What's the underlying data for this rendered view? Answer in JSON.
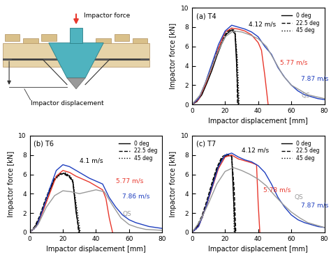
{
  "diagram": {
    "impactor_force_label": "Impactor force",
    "impactor_displacement_label": "Impactor displacement"
  },
  "chart_data": [
    {
      "type": "line",
      "title": "(a) T4",
      "xlabel": "Impactor displacement [mm]",
      "ylabel": "Impactor force [kN]",
      "xlim": [
        0,
        80
      ],
      "xticks": [
        0,
        20,
        40,
        60,
        80
      ],
      "ylim": [
        0,
        10
      ],
      "yticks": [
        0,
        2,
        4,
        6,
        8,
        10
      ],
      "legend": "upper right",
      "series": [
        {
          "name": "0 deg",
          "color": "#000000",
          "line_style": "solid",
          "x": [
            0,
            3,
            6,
            9,
            12,
            15,
            18,
            21,
            24,
            26,
            27,
            28
          ],
          "values": [
            0,
            0.3,
            1.0,
            2.2,
            3.5,
            5.0,
            6.3,
            7.3,
            7.7,
            7.3,
            4.0,
            0
          ]
        },
        {
          "name": "22.5 deg",
          "color": "#000000",
          "line_style": "dashed",
          "x": [
            0,
            3,
            6,
            9,
            12,
            15,
            18,
            21,
            24,
            26,
            27,
            27.5
          ],
          "values": [
            0,
            0.4,
            1.2,
            2.5,
            3.9,
            5.4,
            6.6,
            7.5,
            7.8,
            7.5,
            5.0,
            0
          ]
        },
        {
          "name": "45 deg",
          "color": "#000000",
          "line_style": "dotted",
          "x": [
            0,
            3,
            6,
            9,
            12,
            15,
            18,
            21,
            24,
            26,
            27.5,
            28.5
          ],
          "values": [
            0,
            0.3,
            1.1,
            2.4,
            3.7,
            5.2,
            6.5,
            7.4,
            7.9,
            7.6,
            4.5,
            0
          ]
        },
        {
          "color": "#e8372c",
          "line_style": "solid",
          "x": [
            0,
            4,
            8,
            12,
            16,
            20,
            24,
            28,
            32,
            36,
            40,
            42,
            44,
            46
          ],
          "values": [
            0,
            0.5,
            2.0,
            3.8,
            5.8,
            7.5,
            7.9,
            7.8,
            7.6,
            7.2,
            6.4,
            5.6,
            3.0,
            0
          ]
        },
        {
          "color": "#1f3fbf",
          "line_style": "solid",
          "x": [
            0,
            4,
            8,
            12,
            16,
            20,
            24,
            28,
            32,
            36,
            40,
            44,
            48,
            52,
            56,
            60,
            64,
            68,
            72,
            76,
            80
          ],
          "values": [
            0,
            0.6,
            2.2,
            4.2,
            6.2,
            7.6,
            8.2,
            8.0,
            7.8,
            7.5,
            7.0,
            6.0,
            5.2,
            3.8,
            2.8,
            2.0,
            1.4,
            1.0,
            0.8,
            0.6,
            0.5
          ]
        },
        {
          "color": "#999999",
          "line_style": "solid",
          "x": [
            0,
            5,
            10,
            15,
            20,
            25,
            30,
            35,
            40,
            45,
            50,
            55,
            60,
            70,
            80
          ],
          "values": [
            0,
            1.0,
            3.0,
            5.2,
            7.0,
            7.6,
            7.5,
            7.2,
            6.8,
            6.0,
            4.5,
            3.0,
            2.0,
            1.0,
            0.6
          ]
        }
      ],
      "annotations": [
        {
          "text": "4.12 m/s",
          "color": "#000000",
          "x": 34,
          "y": 8.3
        },
        {
          "text": "5.77 m/s",
          "color": "#e8372c",
          "x": 53,
          "y": 4.3
        },
        {
          "text": "7.87 m/s",
          "color": "#1f3fbf",
          "x": 66,
          "y": 2.7
        },
        {
          "text": "QS",
          "color": "#999999",
          "x": 66,
          "y": 0.9
        }
      ]
    },
    {
      "type": "line",
      "title": "(b) T6",
      "xlabel": "Impactor displacement [mm]",
      "ylabel": "Impactor force [kN]",
      "xlim": [
        0,
        80
      ],
      "xticks": [
        0,
        20,
        40,
        60,
        80
      ],
      "ylim": [
        0,
        10
      ],
      "yticks": [
        0,
        2,
        4,
        6,
        8,
        10
      ],
      "legend": "upper right",
      "series": [
        {
          "name": "0 deg",
          "color": "#000000",
          "line_style": "solid",
          "x": [
            0,
            3,
            6,
            9,
            12,
            15,
            18,
            21,
            24,
            26,
            28,
            30
          ],
          "values": [
            0,
            0.5,
            1.5,
            3.0,
            4.3,
            5.5,
            6.0,
            6.1,
            5.8,
            5.3,
            2.0,
            0
          ]
        },
        {
          "name": "22.5 deg",
          "color": "#000000",
          "line_style": "dashed",
          "x": [
            0,
            3,
            6,
            9,
            12,
            15,
            18,
            21,
            24,
            26,
            28,
            29.5
          ],
          "values": [
            0,
            0.6,
            1.7,
            3.2,
            4.5,
            5.6,
            6.1,
            6.0,
            5.7,
            5.2,
            2.5,
            0
          ]
        },
        {
          "name": "45 deg",
          "color": "#000000",
          "line_style": "dotted",
          "x": [
            0,
            3,
            6,
            9,
            12,
            15,
            18,
            21,
            24,
            26,
            28,
            30.5
          ],
          "values": [
            0,
            0.4,
            1.4,
            2.8,
            4.2,
            5.4,
            5.9,
            6.2,
            5.9,
            5.4,
            3.0,
            0
          ]
        },
        {
          "color": "#e8372c",
          "line_style": "solid",
          "x": [
            0,
            4,
            8,
            12,
            16,
            20,
            24,
            28,
            32,
            36,
            40,
            44,
            46,
            48,
            50
          ],
          "values": [
            0,
            0.6,
            2.2,
            4.0,
            5.8,
            6.4,
            6.2,
            5.8,
            5.5,
            5.2,
            4.8,
            4.4,
            3.5,
            1.5,
            0
          ]
        },
        {
          "color": "#1f3fbf",
          "line_style": "solid",
          "x": [
            0,
            4,
            8,
            12,
            16,
            20,
            24,
            28,
            32,
            36,
            40,
            44,
            48,
            52,
            56,
            60,
            64,
            68,
            72,
            76,
            80
          ],
          "values": [
            0,
            0.6,
            2.4,
            4.5,
            6.4,
            7.0,
            6.8,
            6.4,
            6.0,
            5.6,
            5.3,
            5.0,
            3.6,
            2.6,
            1.8,
            1.3,
            1.0,
            0.8,
            0.6,
            0.5,
            0.4
          ]
        },
        {
          "color": "#999999",
          "line_style": "solid",
          "x": [
            0,
            5,
            10,
            15,
            20,
            25,
            30,
            35,
            40,
            45,
            50,
            55,
            60,
            65,
            70,
            80
          ],
          "values": [
            0,
            0.8,
            2.6,
            3.8,
            4.3,
            4.2,
            4.0,
            4.2,
            4.4,
            4.2,
            2.8,
            1.5,
            0.8,
            0.5,
            0.3,
            0.2
          ]
        }
      ],
      "annotations": [
        {
          "text": "4.1 m/s",
          "color": "#000000",
          "x": 30,
          "y": 7.4
        },
        {
          "text": "5.77 m/s",
          "color": "#e8372c",
          "x": 52,
          "y": 5.3
        },
        {
          "text": "7.86 m/s",
          "color": "#1f3fbf",
          "x": 56,
          "y": 3.7
        },
        {
          "text": "QS",
          "color": "#999999",
          "x": 56,
          "y": 1.9
        }
      ]
    },
    {
      "type": "line",
      "title": "(c) T7",
      "xlabel": "Impactor displacement [mm]",
      "ylabel": "Impactor force [kN]",
      "xlim": [
        0,
        80
      ],
      "xticks": [
        0,
        20,
        40,
        60,
        80
      ],
      "ylim": [
        0,
        10
      ],
      "yticks": [
        0,
        2,
        4,
        6,
        8,
        10
      ],
      "legend": "upper right",
      "series": [
        {
          "name": "0 deg",
          "color": "#000000",
          "line_style": "solid",
          "x": [
            0,
            3,
            6,
            9,
            12,
            15,
            18,
            21,
            24,
            25,
            26
          ],
          "values": [
            0,
            0.5,
            1.5,
            3.0,
            4.8,
            6.5,
            7.6,
            8.0,
            7.9,
            4.0,
            0
          ]
        },
        {
          "name": "22.5 deg",
          "color": "#000000",
          "line_style": "dashed",
          "x": [
            0,
            3,
            6,
            9,
            12,
            15,
            18,
            21,
            24,
            25.5,
            26.5
          ],
          "values": [
            0,
            0.6,
            1.7,
            3.3,
            5.1,
            6.7,
            7.8,
            8.1,
            7.8,
            4.5,
            0
          ]
        },
        {
          "name": "45 deg",
          "color": "#000000",
          "line_style": "dotted",
          "x": [
            0,
            3,
            6,
            9,
            12,
            15,
            18,
            21,
            24,
            25,
            25.5
          ],
          "values": [
            0,
            0.4,
            1.4,
            2.9,
            4.6,
            6.3,
            7.5,
            7.9,
            8.0,
            5.0,
            0
          ]
        },
        {
          "color": "#e8372c",
          "line_style": "solid",
          "x": [
            0,
            4,
            8,
            12,
            16,
            20,
            24,
            28,
            32,
            36,
            39,
            40,
            41
          ],
          "values": [
            0,
            0.6,
            2.4,
            4.5,
            6.6,
            7.8,
            8.0,
            7.6,
            7.4,
            7.2,
            7.0,
            3.0,
            0
          ]
        },
        {
          "color": "#1f3fbf",
          "line_style": "solid",
          "x": [
            0,
            4,
            8,
            12,
            16,
            20,
            24,
            28,
            32,
            36,
            40,
            44,
            48,
            52,
            56,
            60,
            64,
            68,
            72,
            76,
            80
          ],
          "values": [
            0,
            0.6,
            2.4,
            4.6,
            6.8,
            8.0,
            8.2,
            7.8,
            7.5,
            7.3,
            6.9,
            6.2,
            5.0,
            3.6,
            2.6,
            1.8,
            1.3,
            1.0,
            0.8,
            0.6,
            0.5
          ]
        },
        {
          "color": "#999999",
          "line_style": "solid",
          "x": [
            0,
            5,
            10,
            15,
            20,
            25,
            30,
            35,
            40,
            45,
            50,
            55,
            60,
            65,
            70,
            80
          ],
          "values": [
            0,
            1.2,
            3.0,
            5.0,
            6.3,
            6.7,
            6.4,
            6.0,
            5.5,
            4.8,
            3.8,
            2.9,
            2.1,
            1.5,
            1.0,
            0.5
          ]
        }
      ],
      "annotations": [
        {
          "text": "4.12 m/s",
          "color": "#000000",
          "x": 30,
          "y": 8.5
        },
        {
          "text": "5.78 m/s",
          "color": "#e8372c",
          "x": 43,
          "y": 4.4
        },
        {
          "text": "7.87 m/s",
          "color": "#1f3fbf",
          "x": 66,
          "y": 2.8
        },
        {
          "text": "QS",
          "color": "#999999",
          "x": 62,
          "y": 3.6
        }
      ]
    }
  ]
}
